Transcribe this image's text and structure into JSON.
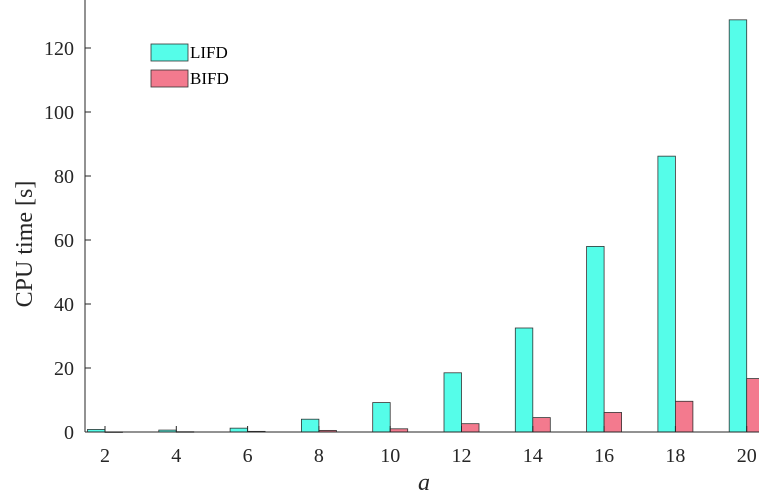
{
  "chart_data": {
    "type": "bar",
    "title": "",
    "xlabel": "a",
    "ylabel": "CPU time [s]",
    "categories": [
      "2",
      "4",
      "6",
      "8",
      "10",
      "12",
      "14",
      "16",
      "18",
      "20"
    ],
    "series": [
      {
        "name": "LIFD",
        "color": "#55fde9",
        "values": [
          0.8,
          0.6,
          1.2,
          4.0,
          9.2,
          18.5,
          32.5,
          58.0,
          86.2,
          128.8
        ]
      },
      {
        "name": "BIFD",
        "color": "#f37a8e",
        "values": [
          0.05,
          0.1,
          0.2,
          0.5,
          1.0,
          2.6,
          4.5,
          6.1,
          9.6,
          16.7
        ]
      }
    ],
    "yticks": [
      0,
      20,
      40,
      60,
      80,
      100,
      120
    ],
    "ylim": [
      0,
      135
    ],
    "legend": "top-left",
    "grid": false
  }
}
